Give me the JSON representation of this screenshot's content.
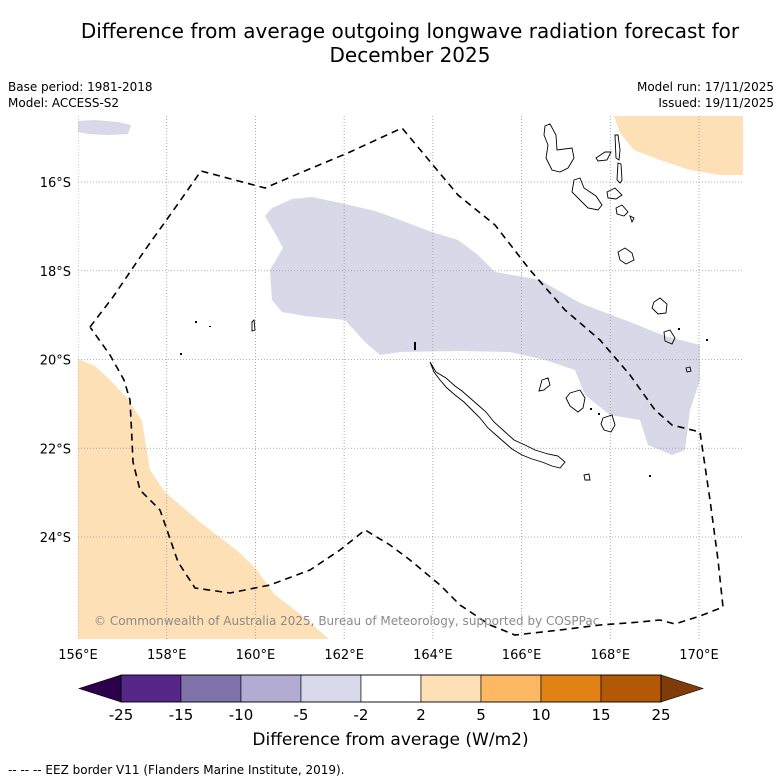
{
  "title_line1": "Difference from average outgoing longwave radiation forecast for",
  "title_line2": "December 2025",
  "meta_left": [
    "Base period: 1981-2018",
    "Model: ACCESS-S2"
  ],
  "meta_right": [
    "Model run: 17/11/2025",
    "Issued: 19/11/2025"
  ],
  "credit": "© Commonwealth of Australia 2025, Bureau of Meteorology, supported by COSPPac",
  "map": {
    "lon_range": [
      156,
      171
    ],
    "lat_range": [
      -26.2,
      -14.8
    ],
    "lon_ticks": [
      156,
      158,
      160,
      162,
      164,
      166,
      168,
      170
    ],
    "lon_tick_labels": [
      "156°E",
      "158°E",
      "160°E",
      "162°E",
      "164°E",
      "166°E",
      "168°E",
      "170°E"
    ],
    "lat_ticks": [
      -16,
      -18,
      -20,
      -22,
      -24
    ],
    "lat_tick_labels": [
      "16°S",
      "18°S",
      "20°S",
      "22°S",
      "24°S"
    ],
    "region": "New Caledonia",
    "anomaly_regions": [
      {
        "name": "central-negative-anomaly",
        "class": "-5 to -2",
        "color": "#d8d8e8"
      },
      {
        "name": "northwest-negative-anomaly",
        "class": "-5 to -2",
        "color": "#d8d8e8"
      },
      {
        "name": "southwest-positive-anomaly",
        "class": "2 to 5",
        "color": "#fee0b6"
      },
      {
        "name": "northeast-positive-anomaly",
        "class": "2 to 5",
        "color": "#fee0b6"
      }
    ]
  },
  "colorbar": {
    "label": "Difference from average (W/m2)",
    "boundaries": [
      "-25",
      "-15",
      "-10",
      "-5",
      "-2",
      "2",
      "5",
      "10",
      "15",
      "25"
    ],
    "colors": [
      "#542788",
      "#8073ac",
      "#b2abd2",
      "#d8daeb",
      "#ffffff",
      "#fee0b6",
      "#fdb863",
      "#e08214",
      "#b35806"
    ],
    "extend_low_color": "#2d004b",
    "extend_high_color": "#7f3b08"
  },
  "legend_footer": "--  --  -- EEZ border V11 (Flanders Marine Institute, 2019)."
}
